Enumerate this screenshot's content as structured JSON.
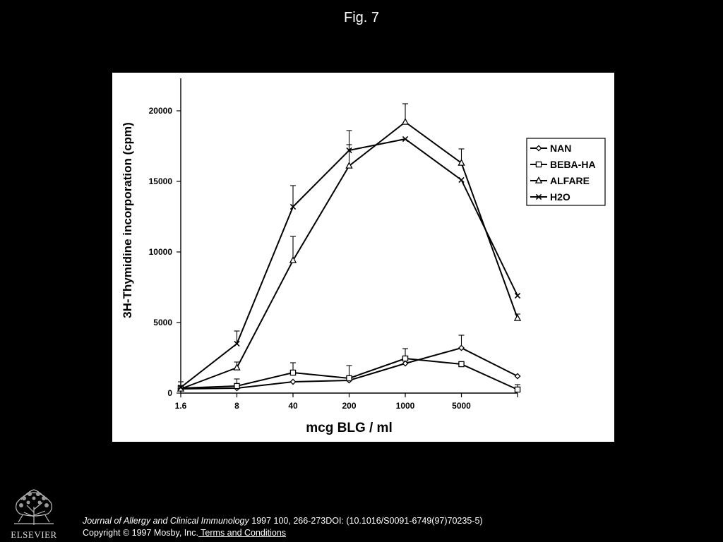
{
  "header": {
    "figure_title": "Fig. 7"
  },
  "footer": {
    "publisher_logo_text": "ELSEVIER",
    "journal_name": "Journal of Allergy and Clinical Immunology",
    "citation_rest": " 1997 100, 266-273DOI: (10.1016/S0091-6749(97)70235-5)",
    "copyright": "Copyright © 1997 Mosby, Inc.",
    "terms_link": " Terms and Conditions"
  },
  "colors": {
    "page_background": "#000000",
    "plot_background": "#ffffff",
    "series_line": "#000000"
  },
  "chart_data": {
    "type": "line",
    "title": "",
    "xlabel": "mcg BLG / ml",
    "ylabel": "3H-Thymidine incorporation (cpm)",
    "x_scale": "categorical (log-spaced doses)",
    "categories": [
      "1.6",
      "8",
      "40",
      "200",
      "1000",
      "5000",
      ""
    ],
    "y_ticks": [
      0,
      5000,
      10000,
      15000,
      20000
    ],
    "y_tick_labels": [
      "0",
      "5000",
      "10000",
      "15000",
      "20000"
    ],
    "ylim": [
      0,
      22000
    ],
    "grid": false,
    "legend_position": "top-right",
    "series": [
      {
        "name": "NAN",
        "marker": "diamond",
        "values": [
          300,
          350,
          800,
          900,
          2100,
          3200,
          1200
        ],
        "errors": [
          0,
          0,
          0,
          0,
          0,
          900,
          0
        ]
      },
      {
        "name": "BEBA-HA",
        "marker": "square",
        "values": [
          350,
          500,
          1450,
          1050,
          2450,
          2050,
          250
        ],
        "errors": [
          0,
          500,
          700,
          900,
          700,
          0,
          350
        ]
      },
      {
        "name": "ALFARE",
        "marker": "triangle",
        "values": [
          300,
          1800,
          9400,
          16100,
          19200,
          16300,
          5300
        ],
        "errors": [
          0,
          400,
          1700,
          1500,
          1300,
          1000,
          300
        ]
      },
      {
        "name": "H2O",
        "marker": "x",
        "values": [
          400,
          3500,
          13200,
          17200,
          18000,
          15100,
          6900
        ],
        "errors": [
          400,
          900,
          1500,
          1400,
          0,
          0,
          0
        ]
      }
    ]
  }
}
